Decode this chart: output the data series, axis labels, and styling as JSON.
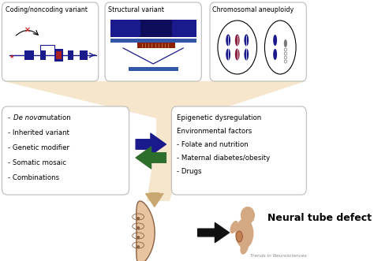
{
  "background_color": "#ffffff",
  "funnel_color": "#f5e6cc",
  "box_edge_color": "#bbbbbb",
  "top_left_title": "Coding/noncoding variant",
  "top_mid_title": "Structural variant",
  "top_right_title": "Chromosomal aneuploidy",
  "left_box_lines": [
    "- De novo mutation",
    "- Inherited variant",
    "- Genetic modifier",
    "- Somatic mosaic",
    "- Combinations"
  ],
  "right_box_line0": "Epigenetic dysregulation",
  "right_box_line1": "Environmental factors",
  "right_box_lines_sub": [
    "- Folate and nutrition",
    "- Maternal diabetes/obesity",
    "- Drugs"
  ],
  "neural_tube_label": "Neural tube defect",
  "watermark": "Trends in Neurosciences",
  "arrow_right_color": "#1a1a8c",
  "arrow_left_color": "#2d6e2d",
  "arrow_down_color": "#c8a870",
  "arrow_neural_color": "#111111",
  "gene_line_color": "#1a1a8c",
  "gene_box_color": "#1a1a8c",
  "gene_box_red": "#aa2222",
  "seq_blue": "#1a1a8c",
  "seq_red": "#8b2000",
  "chrom_blue1": "#1a1a8c",
  "chrom_red": "#8b2040",
  "chrom_gray": "#777777"
}
